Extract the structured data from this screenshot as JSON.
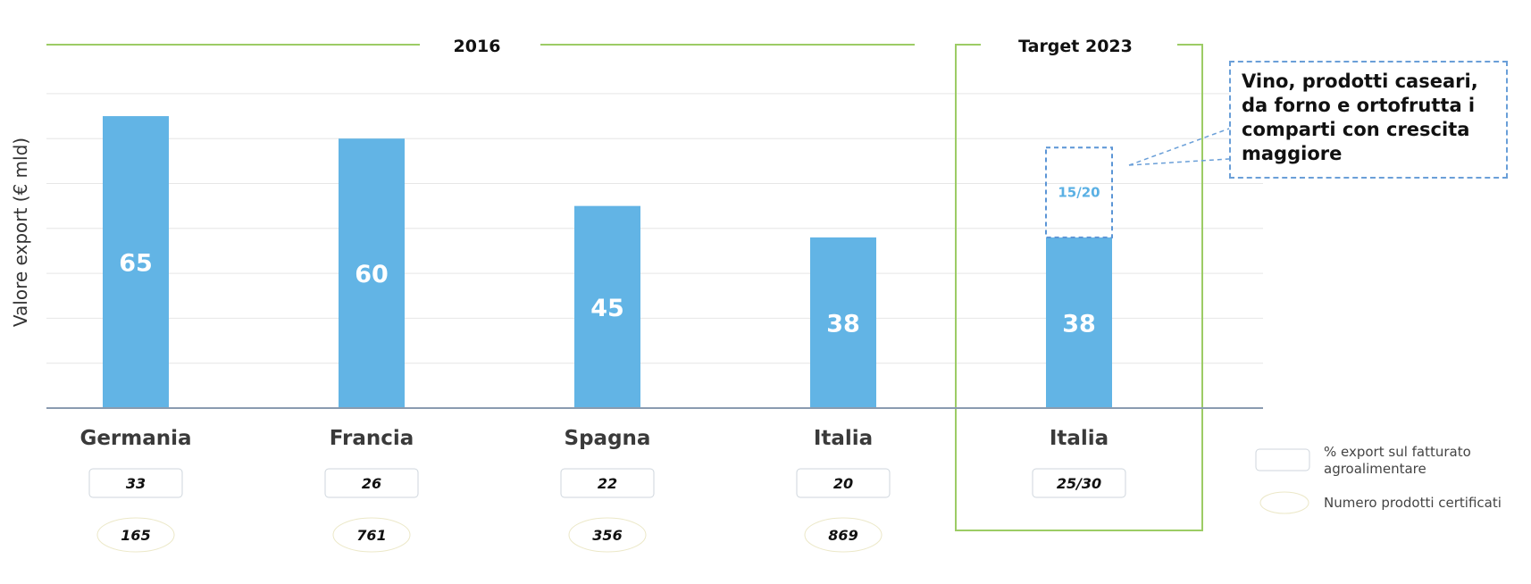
{
  "chart_data": {
    "type": "bar",
    "ylabel": "Valore export (€ mld)",
    "ylim": [
      0,
      70
    ],
    "grid": true,
    "groups": [
      {
        "label": "2016",
        "categories": [
          "Germania",
          "Francia",
          "Spagna",
          "Italia"
        ]
      },
      {
        "label": "Target 2023",
        "categories": [
          "Italia"
        ]
      }
    ],
    "categories": [
      "Germania",
      "Francia",
      "Spagna",
      "Italia",
      "Italia"
    ],
    "values": [
      65,
      60,
      45,
      38,
      38
    ],
    "value_labels": [
      "65",
      "60",
      "45",
      "38",
      "38"
    ],
    "target_increment": {
      "category_index": 4,
      "value_range": [
        15,
        20
      ],
      "label": "15/20"
    },
    "export_share_labels": [
      "33",
      "26",
      "22",
      "20",
      "25/30"
    ],
    "certified_products_labels": [
      "165",
      "761",
      "356",
      "869"
    ],
    "legend": [
      {
        "name": "% export sul fatturato agroalimentare",
        "shape": "rounded-box"
      },
      {
        "name": "Numero prodotti certificati",
        "shape": "ellipse"
      }
    ],
    "annotation": "Vino, prodotti caseari, da forno e ortofrutta i comparti con crescita maggiore",
    "colors": {
      "bar": "#62b4e5",
      "target_dashed": "#5b95d6",
      "group_line": "#9ccc65",
      "axis": "#8a9bb0",
      "grid": "#e6e6e6"
    }
  }
}
